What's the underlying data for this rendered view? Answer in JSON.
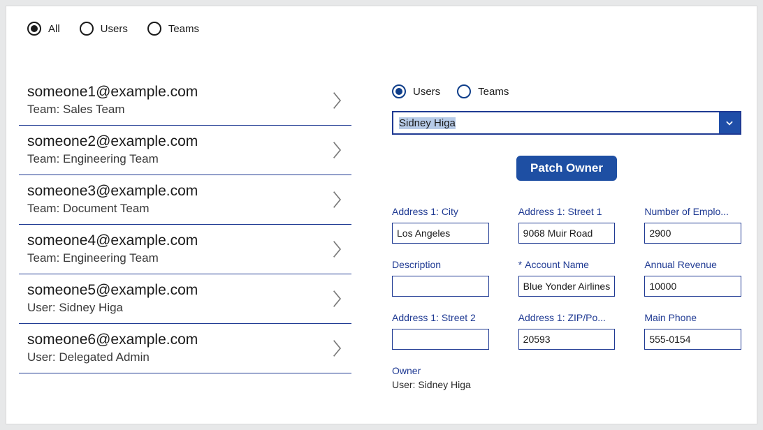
{
  "colors": {
    "accent": "#1f3a93",
    "button_bg": "#1e4fa3",
    "highlight": "#b7cbe8",
    "page_bg": "#e7e8e9"
  },
  "topFilters": {
    "options": [
      {
        "id": "all",
        "label": "All",
        "selected": true
      },
      {
        "id": "users",
        "label": "Users",
        "selected": false
      },
      {
        "id": "teams",
        "label": "Teams",
        "selected": false
      }
    ]
  },
  "list": [
    {
      "title": "someone1@example.com",
      "sub": "Team: Sales Team"
    },
    {
      "title": "someone2@example.com",
      "sub": "Team: Engineering Team"
    },
    {
      "title": "someone3@example.com",
      "sub": "Team: Document Team"
    },
    {
      "title": "someone4@example.com",
      "sub": "Team: Engineering Team"
    },
    {
      "title": "someone5@example.com",
      "sub": "User: Sidney Higa"
    },
    {
      "title": "someone6@example.com",
      "sub": "User: Delegated Admin"
    }
  ],
  "rightRadios": {
    "options": [
      {
        "id": "users",
        "label": "Users",
        "selected": true
      },
      {
        "id": "teams",
        "label": "Teams",
        "selected": false
      }
    ]
  },
  "ownerSelect": {
    "value": "Sidney Higa",
    "highlighted": true
  },
  "patchButton": "Patch Owner",
  "fields": [
    {
      "label": "Address 1: City",
      "value": "Los Angeles",
      "required": false
    },
    {
      "label": "Address 1: Street 1",
      "value": "9068 Muir Road",
      "required": false
    },
    {
      "label": "Number of Emplo...",
      "value": "2900",
      "required": false
    },
    {
      "label": "Description",
      "value": "",
      "required": false
    },
    {
      "label": "Account Name",
      "value": "Blue Yonder Airlines",
      "required": true
    },
    {
      "label": "Annual Revenue",
      "value": "10000",
      "required": false
    },
    {
      "label": "Address 1: Street 2",
      "value": "",
      "required": false
    },
    {
      "label": "Address 1: ZIP/Po...",
      "value": "20593",
      "required": false
    },
    {
      "label": "Main Phone",
      "value": "555-0154",
      "required": false
    }
  ],
  "owner": {
    "label": "Owner",
    "value": "User: Sidney Higa"
  }
}
